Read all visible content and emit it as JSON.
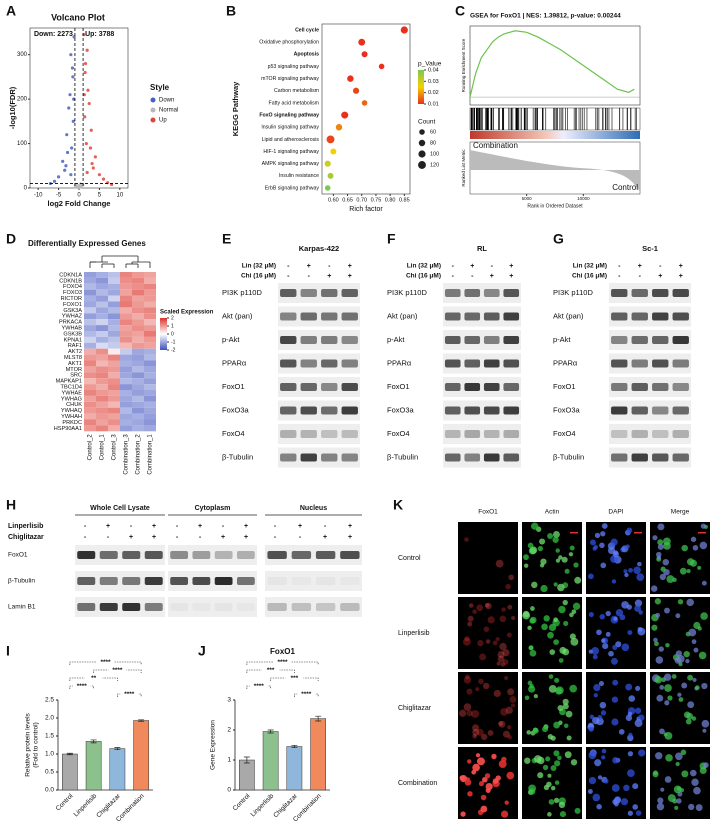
{
  "chart_data": [
    {
      "panel": "A",
      "type": "scatter",
      "title": "Volcano Plot",
      "annotations": [
        "Down: 2273",
        "Up: 3788"
      ],
      "xlabel": "log2 Fold Change",
      "ylabel": "-log10(FDR)",
      "legend_title": "Style",
      "xlim": [
        -12,
        12
      ],
      "ylim": [
        0,
        360
      ],
      "xticks": [
        -10,
        -5,
        0,
        5,
        10
      ],
      "yticks": [
        0,
        100,
        200,
        300
      ],
      "vlines": [
        -1,
        1
      ],
      "hline": 10,
      "series": [
        {
          "name": "Down",
          "color": "#4a5fc1",
          "x": [
            -1.5,
            -2,
            -2.5,
            -3,
            -1.2,
            -1.8,
            -4,
            -2.2,
            -3.5,
            -1.4,
            -5,
            -2.8,
            -1.6,
            -6,
            -2,
            -1.3,
            -3.2,
            -7
          ],
          "y": [
            250,
            300,
            180,
            120,
            340,
            90,
            60,
            210,
            40,
            150,
            25,
            80,
            270,
            15,
            30,
            200,
            50,
            10
          ]
        },
        {
          "name": "Normal",
          "color": "#b8b8b8",
          "x": [
            -0.5,
            0.3,
            -0.8,
            0.6,
            0.1,
            -0.3,
            0.9,
            -0.9,
            0.4,
            -0.1
          ],
          "y": [
            5,
            3,
            8,
            2,
            6,
            4,
            7,
            2,
            9,
            1
          ]
        },
        {
          "name": "Up",
          "color": "#e0453a",
          "x": [
            1.5,
            2,
            2.5,
            3,
            1.2,
            1.8,
            4,
            2.2,
            3.5,
            1.4,
            5,
            2.8,
            1.6,
            6,
            2,
            1.3,
            3.2,
            7,
            8
          ],
          "y": [
            260,
            310,
            190,
            130,
            345,
            100,
            70,
            220,
            45,
            160,
            30,
            90,
            280,
            20,
            35,
            210,
            55,
            12,
            8
          ]
        }
      ]
    },
    {
      "panel": "B",
      "type": "dot",
      "ylabel": "KEGG Pathway",
      "xlabel": "Rich factor",
      "categories": [
        "Cell cycle",
        "Oxidative phosphorylation",
        "Apoptosis",
        "p53 signaling pathway",
        "mTOR signaling pathway",
        "Carbon metabolism",
        "Fatty acid metabolism",
        "FoxO signaling pathway",
        "Insulin signaling pathway",
        "Lipid and atherosclerosis",
        "HIF-1 signaling pathway",
        "AMPK signaling pathway",
        "Insulin resistance",
        "ErbB signaling pathway"
      ],
      "label_colors": [
        "#e0302a",
        "#111",
        "#e0302a",
        "#111",
        "#111",
        "#111",
        "#111",
        "#e0302a",
        "#111",
        "#111",
        "#111",
        "#111",
        "#111",
        "#111"
      ],
      "values": [
        0.85,
        0.7,
        0.71,
        0.77,
        0.66,
        0.68,
        0.71,
        0.64,
        0.62,
        0.59,
        0.6,
        0.58,
        0.59,
        0.58
      ],
      "p_value": [
        0.002,
        0.005,
        0.006,
        0.01,
        0.008,
        0.012,
        0.015,
        0.01,
        0.018,
        0.012,
        0.025,
        0.03,
        0.035,
        0.04
      ],
      "count": [
        100,
        90,
        70,
        60,
        80,
        75,
        60,
        95,
        80,
        120,
        70,
        72,
        68,
        60
      ],
      "xlim": [
        0.56,
        0.87
      ],
      "xticks": [
        {
          "value": 0.6,
          "label": "0.60"
        },
        0.65,
        {
          "value": 0.7,
          "label": "0.70"
        },
        0.75,
        {
          "value": 0.8,
          "label": "0.80"
        },
        0.85
      ],
      "color_legend_title": "p_Value",
      "color_ticks": [
        0.04,
        0.03,
        0.02,
        0.01
      ],
      "size_legend_title": "Count",
      "size_ticks": [
        60,
        80,
        100,
        120
      ]
    },
    {
      "panel": "C",
      "type": "gsea",
      "title": "GSEA for FoxO1 | NES: 1.39812, p-value: 0.00244",
      "ylabel": "Running Enrichment Score",
      "ylabel2": "Ranked List Metric",
      "xlabel": "Rank in Ordered Dataset",
      "color": "#6cc24a",
      "group_labels": [
        "Combination",
        "Control"
      ],
      "x": [
        0,
        500,
        1000,
        1500,
        2000,
        2500,
        3000,
        3500,
        4000,
        5000,
        6000,
        7000,
        8000,
        9000,
        10000,
        11000,
        12000,
        13000,
        14000,
        14500
      ],
      "values": [
        0,
        0.15,
        0.25,
        0.3,
        0.35,
        0.38,
        0.4,
        0.41,
        0.42,
        0.41,
        0.38,
        0.34,
        0.3,
        0.25,
        0.2,
        0.15,
        0.1,
        0.05,
        0.03,
        0.05
      ],
      "xlim": [
        0,
        15000
      ],
      "ylim": [
        -0.05,
        0.45
      ],
      "xticks": [
        5000,
        10000
      ]
    },
    {
      "panel": "D",
      "type": "heatmap",
      "title": "Differentially Expressed Genes",
      "legend_title": "Scaled Expression",
      "zlim": [
        -2,
        2
      ],
      "legend_ticks": [
        2,
        1,
        0,
        -1,
        -2
      ],
      "columns": [
        "Control_2",
        "Control_1",
        "Control_3",
        "Combination_3",
        "Combination_2",
        "Combination_1"
      ],
      "rows": [
        "CDKN1A",
        "CDKN1B",
        "FOXO4",
        "FOXO3",
        "RICTOR",
        "FOXO1",
        "GSK3A",
        "YWHAZ",
        "PRKACA",
        "YWHAB",
        "GSK3B",
        "KPNA1",
        "RAF1",
        "AKT2",
        "MLST8",
        "AKT1",
        "MTOR",
        "SRC",
        "MAPKAP1",
        "TBC1D4",
        "YWHAE",
        "YWHAG",
        "CHUK",
        "YWHAQ",
        "YWHAH",
        "PRKDC",
        "HSP90AA1"
      ],
      "row_colors": [
        "#111",
        "#111",
        "#111",
        "#111",
        "#111",
        "#e0302a",
        "#111",
        "#111",
        "#111",
        "#111",
        "#111",
        "#111",
        "#111",
        "#111",
        "#111",
        "#111",
        "#111",
        "#111",
        "#111",
        "#111",
        "#111",
        "#111",
        "#111",
        "#111",
        "#111",
        "#111",
        "#111"
      ],
      "values": [
        [
          -1.1,
          -0.9,
          -0.7,
          1.2,
          1,
          0.9
        ],
        [
          -1,
          -1.2,
          -0.6,
          1.1,
          1.2,
          0.8
        ],
        [
          -0.8,
          -1,
          -0.9,
          1,
          1.1,
          1.2
        ],
        [
          -1.2,
          -0.8,
          -1,
          0.9,
          1.3,
          1
        ],
        [
          -0.9,
          -1.1,
          -0.5,
          1.2,
          0.9,
          1
        ],
        [
          -1,
          -0.7,
          -1.1,
          1.3,
          1,
          0.8
        ],
        [
          -0.6,
          -1,
          -0.8,
          0.8,
          1.1,
          1.2
        ],
        [
          -1.1,
          -0.9,
          -1.2,
          1,
          0.8,
          1.1
        ],
        [
          -0.7,
          -0.5,
          -0.9,
          1.2,
          1,
          0.7
        ],
        [
          -1,
          -1.2,
          -0.8,
          0.9,
          1.1,
          1
        ],
        [
          -0.8,
          -0.6,
          -1,
          1,
          0.9,
          1.3
        ],
        [
          -0.5,
          -0.9,
          -0.7,
          1.1,
          0.8,
          1
        ],
        [
          -0.9,
          -0.4,
          -0.6,
          0.7,
          1,
          0.9
        ],
        [
          0.8,
          1.1,
          0.2,
          -0.6,
          -1,
          -0.9
        ],
        [
          1,
          0.9,
          1.2,
          -1,
          -1.1,
          -0.8
        ],
        [
          1.2,
          0.7,
          0.9,
          -0.9,
          -1,
          -1.2
        ],
        [
          0.9,
          1.1,
          1,
          -1.1,
          -0.8,
          -1
        ],
        [
          1.1,
          1.2,
          0.8,
          -1,
          -1.2,
          -0.9
        ],
        [
          0.7,
          1,
          1.1,
          -0.8,
          -0.9,
          -1.1
        ],
        [
          1,
          0.8,
          1.2,
          -1.2,
          -1,
          -0.8
        ],
        [
          1.2,
          1,
          0.9,
          -0.9,
          -1.1,
          -1
        ],
        [
          0.9,
          1.2,
          1,
          -1,
          -0.8,
          -1.2
        ],
        [
          1.1,
          0.9,
          0.7,
          -1.1,
          -1,
          -0.9
        ],
        [
          1,
          1.1,
          1.2,
          -0.8,
          -1.2,
          -1
        ],
        [
          0.8,
          1,
          0.9,
          -1,
          -0.9,
          -1.1
        ],
        [
          1.2,
          0.9,
          1.1,
          -0.9,
          -1,
          -1.2
        ],
        [
          1,
          1.2,
          0.8,
          -1.1,
          -0.9,
          -1
        ]
      ]
    },
    {
      "panel": "I",
      "type": "bar",
      "ylabel": [
        "Relative protein levels",
        "(Fold  to control)"
      ],
      "categories": [
        "Control",
        "Linperlisib",
        "Chiglitazar",
        "Combination"
      ],
      "values": [
        1,
        1.35,
        1.15,
        1.93
      ],
      "errors": [
        0.02,
        0.04,
        0.03,
        0.02
      ],
      "colors": [
        "#a9a9a9",
        "#8cc08c",
        "#8fb7dc",
        "#f08a5d"
      ],
      "ylim": [
        0,
        2.5
      ],
      "yticks": [
        {
          "value": 0,
          "label": "0.0"
        },
        {
          "value": 0.5,
          "label": "0.5"
        },
        {
          "value": 1,
          "label": "1.0"
        },
        {
          "value": 1.5,
          "label": "1.5"
        },
        {
          "value": 2,
          "label": "2.0"
        },
        {
          "value": 2.5,
          "label": "2.5"
        }
      ],
      "comparisons": [
        {
          "from": "Control",
          "to": "Combination",
          "label": "****"
        },
        {
          "from": "Linperlisib",
          "to": "Combination",
          "label": "****"
        },
        {
          "from": "Control",
          "to": "Chiglitazar",
          "label": "**"
        },
        {
          "from": "Control",
          "to": "Linperlisib",
          "label": "****"
        },
        {
          "from": "Chiglitazar",
          "to": "Combination",
          "label": "****"
        }
      ]
    },
    {
      "panel": "J",
      "type": "bar",
      "title": "FoxO1",
      "ylabel": [
        "Gene Expression"
      ],
      "categories": [
        "Control",
        "Linperlisib",
        "Chiglitazar",
        "Combination"
      ],
      "values": [
        1,
        1.95,
        1.45,
        2.38
      ],
      "errors": [
        0.1,
        0.05,
        0.04,
        0.08
      ],
      "colors": [
        "#a9a9a9",
        "#8cc08c",
        "#8fb7dc",
        "#f08a5d"
      ],
      "ylim": [
        0,
        3
      ],
      "yticks": [
        0,
        1,
        2,
        3
      ],
      "comparisons": [
        {
          "from": "Control",
          "to": "Combination",
          "label": "****"
        },
        {
          "from": "Control",
          "to": "Chiglitazar",
          "label": "***"
        },
        {
          "from": "Linperlisib",
          "to": "Combination",
          "label": "***"
        },
        {
          "from": "Control",
          "to": "Linperlisib",
          "label": "****"
        },
        {
          "from": "Chiglitazar",
          "to": "Combination",
          "label": "****"
        }
      ]
    }
  ],
  "blots": [
    {
      "panel": "E",
      "title": "Karpas-422",
      "treatments": [
        {
          "label": "Lin (32 μM)",
          "marks": [
            "-",
            "+",
            "-",
            "+"
          ]
        },
        {
          "label": "Chi (16 μM)",
          "marks": [
            "-",
            "-",
            "+",
            "+"
          ]
        }
      ],
      "rows": [
        "PI3K p110D",
        "Akt (pan)",
        "p-Akt",
        "PPARα",
        "FoxO1",
        "FoxO3a",
        "FoxO4",
        "β-Tubulin"
      ]
    },
    {
      "panel": "F",
      "title": "RL",
      "treatments": [
        {
          "label": "Lin (32 μM)",
          "marks": [
            "-",
            "+",
            "-",
            "+"
          ]
        },
        {
          "label": "Chi (16 μM)",
          "marks": [
            "-",
            "-",
            "+",
            "+"
          ]
        }
      ],
      "rows": [
        "PI3K p110D",
        "Akt (pan)",
        "p-Akt",
        "PPARα",
        "FoxO1",
        "FoxO3a",
        "FoxO4",
        "β-Tubulin"
      ]
    },
    {
      "panel": "G",
      "title": "Sc-1",
      "treatments": [
        {
          "label": "Lin (32 μM)",
          "marks": [
            "-",
            "+",
            "-",
            "+"
          ]
        },
        {
          "label": "Chi (16 μM)",
          "marks": [
            "-",
            "-",
            "+",
            "+"
          ]
        }
      ],
      "rows": [
        "PI3K p110D",
        "Akt (pan)",
        "p-Akt",
        "PPARα",
        "FoxO1",
        "FoxO3a",
        "FoxO4",
        "β-Tubulin"
      ]
    }
  ],
  "fractionation": {
    "panel": "H",
    "groups": [
      "Whole Cell Lysate",
      "Cytoplasm",
      "Nucleus"
    ],
    "treatments": [
      {
        "label": "Linperlisib",
        "marks": [
          "-",
          "+",
          "-",
          "+",
          "-",
          "+",
          "-",
          "+",
          "-",
          "+",
          "-",
          "+"
        ]
      },
      {
        "label": "Chiglitazar",
        "marks": [
          "-",
          "-",
          "+",
          "+",
          "-",
          "-",
          "+",
          "+",
          "-",
          "-",
          "+",
          "+"
        ]
      }
    ],
    "rows": [
      "FoxO1",
      "β-Tubulin",
      "Lamin B1"
    ]
  },
  "imaging": {
    "panel": "K",
    "columns": [
      "FoxO1",
      "Actin",
      "DAPI",
      "Merge"
    ],
    "rows": [
      "Control",
      "Linperlisib",
      "Chiglitazar",
      "Combination"
    ]
  }
}
